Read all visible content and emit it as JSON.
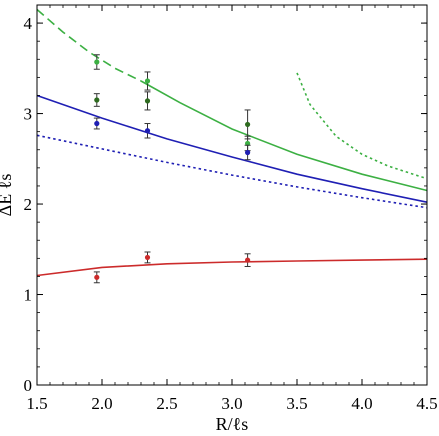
{
  "chart_data": {
    "type": "scatter",
    "title": "",
    "xlabel": "R/ℓs",
    "ylabel": "ΔE ℓs",
    "xlim": [
      1.5,
      4.5
    ],
    "ylim": [
      0,
      4.2
    ],
    "x_ticks": [
      "1.5",
      "2.0",
      "2.5",
      "3.0",
      "3.5",
      "4.0",
      "4.5"
    ],
    "y_ticks": [
      "0",
      "1",
      "2",
      "3",
      "4"
    ],
    "x_tick_values": [
      1.5,
      2.0,
      2.5,
      3.0,
      3.5,
      4.0,
      4.5
    ],
    "y_tick_values": [
      0,
      1,
      2,
      3,
      4
    ],
    "grid": false,
    "legend": "none",
    "points": [
      {
        "color": "#3cb043",
        "x": [
          1.96,
          2.35,
          3.12
        ],
        "y": [
          3.57,
          3.36,
          2.67
        ],
        "err": [
          0.08,
          0.1,
          0.08
        ]
      },
      {
        "color": "#2e6b1f",
        "x": [
          1.96,
          2.35,
          3.12
        ],
        "y": [
          3.15,
          3.14,
          2.88
        ],
        "err": [
          0.07,
          0.1,
          0.16
        ]
      },
      {
        "color": "#1f1fb4",
        "x": [
          1.96,
          2.35,
          3.12
        ],
        "y": [
          2.89,
          2.81,
          2.57
        ],
        "err": [
          0.06,
          0.08,
          0.08
        ]
      },
      {
        "color": "#cc2b2b",
        "x": [
          1.96,
          2.35,
          3.12
        ],
        "y": [
          1.19,
          1.41,
          1.38
        ],
        "err": [
          0.06,
          0.06,
          0.07
        ]
      }
    ],
    "curves": [
      {
        "color": "#3cb043",
        "style": "dashed",
        "x": [
          1.5,
          1.7,
          1.9,
          2.1,
          2.3
        ],
        "y": [
          4.15,
          3.9,
          3.68,
          3.5,
          3.36
        ]
      },
      {
        "color": "#3cb043",
        "style": "solid",
        "x": [
          2.3,
          2.6,
          3.0,
          3.5,
          4.0,
          4.5
        ],
        "y": [
          3.36,
          3.12,
          2.83,
          2.55,
          2.33,
          2.15
        ]
      },
      {
        "color": "#1f1fb4",
        "style": "solid",
        "x": [
          1.5,
          2.0,
          2.5,
          3.0,
          3.5,
          4.0,
          4.5
        ],
        "y": [
          3.2,
          2.95,
          2.72,
          2.52,
          2.33,
          2.17,
          2.02
        ]
      },
      {
        "color": "#1f1fb4",
        "style": "dotted",
        "x": [
          1.5,
          2.0,
          2.5,
          3.0,
          3.5,
          4.0,
          4.5
        ],
        "y": [
          2.76,
          2.61,
          2.46,
          2.32,
          2.19,
          2.07,
          1.96
        ]
      },
      {
        "color": "#cc2b2b",
        "style": "solid",
        "x": [
          1.5,
          2.0,
          2.5,
          3.0,
          3.5,
          4.0,
          4.5
        ],
        "y": [
          1.21,
          1.3,
          1.34,
          1.36,
          1.37,
          1.38,
          1.39
        ]
      },
      {
        "color": "#3cb043",
        "style": "dotted",
        "x": [
          3.5,
          3.6,
          3.8,
          4.0,
          4.2,
          4.5
        ],
        "y": [
          3.45,
          3.1,
          2.75,
          2.55,
          2.42,
          2.28
        ]
      }
    ]
  }
}
